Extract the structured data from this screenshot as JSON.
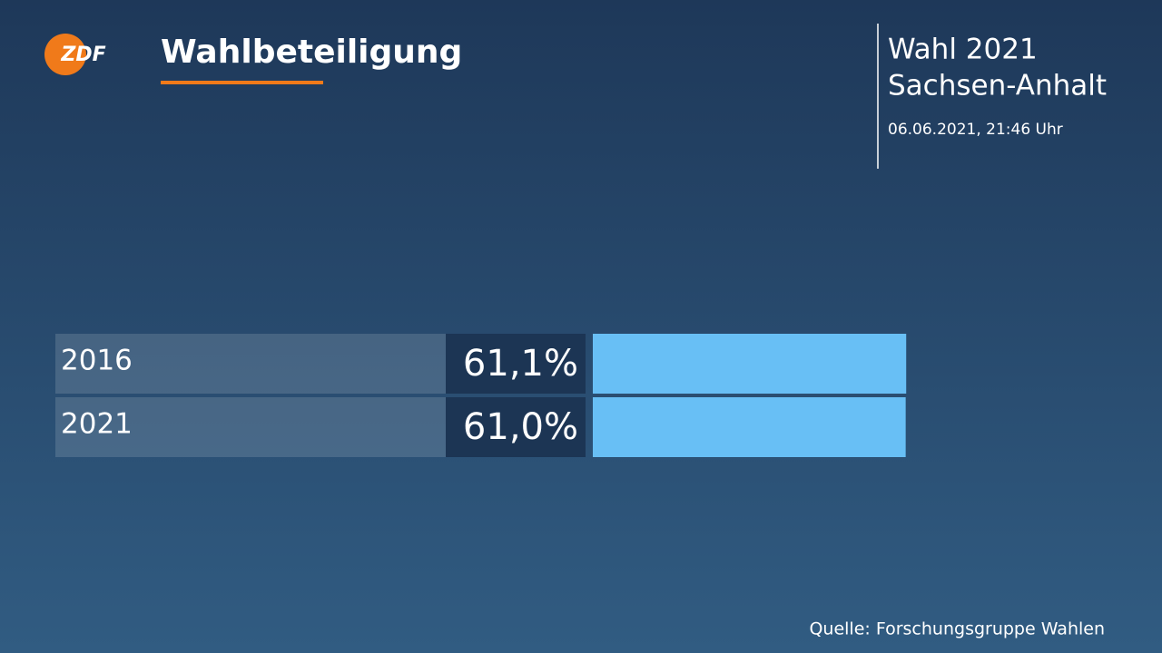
{
  "logo": "ZDF",
  "header": {
    "line1": "Wahl 2021",
    "line2": "Sachsen-Anhalt",
    "timestamp": "06.06.2021, 21:46 Uhr"
  },
  "source": "Quelle: Forschungsgruppe Wahlen",
  "chart_data": {
    "type": "bar",
    "orientation": "horizontal",
    "title": "Wahlbeteiligung",
    "categories": [
      "2016",
      "2021"
    ],
    "values": [
      61.1,
      61.0
    ],
    "value_labels": [
      "61,1%",
      "61,0%"
    ],
    "color": "#68bff5"
  }
}
